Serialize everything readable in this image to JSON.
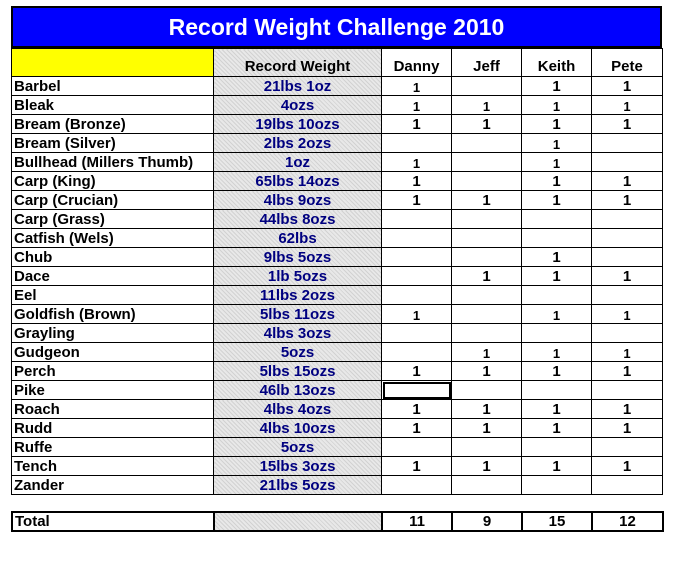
{
  "title": "Record Weight Challenge 2010",
  "headers": {
    "record": "Record Weight",
    "people": [
      "Danny",
      "Jeff",
      "Keith",
      "Pete"
    ]
  },
  "rows": [
    {
      "name": "Barbel",
      "record": "21lbs 1oz",
      "marks": [
        "1",
        "",
        "1",
        "1"
      ],
      "small": [
        true,
        false,
        false,
        false
      ]
    },
    {
      "name": "Bleak",
      "record": "4ozs",
      "marks": [
        "1",
        "1",
        "1",
        "1"
      ],
      "small": [
        true,
        true,
        true,
        true
      ]
    },
    {
      "name": "Bream (Bronze)",
      "record": "19lbs 10ozs",
      "marks": [
        "1",
        "1",
        "1",
        "1"
      ],
      "small": [
        false,
        false,
        false,
        false
      ]
    },
    {
      "name": "Bream (Silver)",
      "record": "2lbs 2ozs",
      "marks": [
        "",
        "",
        "1",
        ""
      ],
      "small": [
        false,
        false,
        true,
        false
      ]
    },
    {
      "name": "Bullhead (Millers Thumb)",
      "record": "1oz",
      "marks": [
        "1",
        "",
        "1",
        ""
      ],
      "small": [
        true,
        false,
        true,
        false
      ]
    },
    {
      "name": "Carp (King)",
      "record": "65lbs 14ozs",
      "marks": [
        "1",
        "",
        "1",
        "1"
      ],
      "small": [
        false,
        false,
        false,
        false
      ]
    },
    {
      "name": "Carp (Crucian)",
      "record": "4lbs 9ozs",
      "marks": [
        "1",
        "1",
        "1",
        "1"
      ],
      "small": [
        false,
        false,
        false,
        false
      ]
    },
    {
      "name": "Carp (Grass)",
      "record": "44lbs 8ozs",
      "marks": [
        "",
        "",
        "",
        ""
      ],
      "small": [
        false,
        false,
        false,
        false
      ]
    },
    {
      "name": "Catfish (Wels)",
      "record": "62lbs",
      "marks": [
        "",
        "",
        "",
        ""
      ],
      "small": [
        false,
        false,
        false,
        false
      ]
    },
    {
      "name": "Chub",
      "record": "9lbs 5ozs",
      "marks": [
        "",
        "",
        "1",
        ""
      ],
      "small": [
        false,
        false,
        false,
        false
      ]
    },
    {
      "name": "Dace",
      "record": "1lb 5ozs",
      "marks": [
        "",
        "1",
        "1",
        "1"
      ],
      "small": [
        false,
        false,
        false,
        false
      ]
    },
    {
      "name": "Eel",
      "record": "11lbs 2ozs",
      "marks": [
        "",
        "",
        "",
        ""
      ],
      "small": [
        false,
        false,
        false,
        false
      ]
    },
    {
      "name": "Goldfish (Brown)",
      "record": "5lbs 11ozs",
      "marks": [
        "1",
        "",
        "1",
        "1"
      ],
      "small": [
        true,
        false,
        true,
        true
      ]
    },
    {
      "name": "Grayling",
      "record": "4lbs 3ozs",
      "marks": [
        "",
        "",
        "",
        ""
      ],
      "small": [
        false,
        false,
        false,
        false
      ]
    },
    {
      "name": "Gudgeon",
      "record": "5ozs",
      "marks": [
        "",
        "1",
        "1",
        "1"
      ],
      "small": [
        false,
        true,
        true,
        true
      ]
    },
    {
      "name": "Perch",
      "record": "5lbs 15ozs",
      "marks": [
        "1",
        "1",
        "1",
        "1"
      ],
      "small": [
        false,
        false,
        false,
        false
      ]
    },
    {
      "name": "Pike",
      "record": "46lb 13ozs",
      "marks": [
        "",
        "",
        "",
        ""
      ],
      "small": [
        false,
        false,
        false,
        false
      ]
    },
    {
      "name": "Roach",
      "record": "4lbs 4ozs",
      "marks": [
        "1",
        "1",
        "1",
        "1"
      ],
      "small": [
        false,
        false,
        false,
        false
      ]
    },
    {
      "name": "Rudd",
      "record": "4lbs 10ozs",
      "marks": [
        "1",
        "1",
        "1",
        "1"
      ],
      "small": [
        false,
        false,
        false,
        false
      ]
    },
    {
      "name": "Ruffe",
      "record": "5ozs",
      "marks": [
        "",
        "",
        "",
        ""
      ],
      "small": [
        false,
        false,
        false,
        false
      ]
    },
    {
      "name": "Tench",
      "record": "15lbs 3ozs",
      "marks": [
        "1",
        "1",
        "1",
        "1"
      ],
      "small": [
        false,
        false,
        false,
        false
      ]
    },
    {
      "name": "Zander",
      "record": "21lbs 5ozs",
      "marks": [
        "",
        "",
        "",
        ""
      ],
      "small": [
        false,
        false,
        false,
        false
      ]
    }
  ],
  "total": {
    "label": "Total",
    "values": [
      "11",
      "9",
      "15",
      "12"
    ]
  },
  "selected_cell": {
    "row": "Pike",
    "column": "Danny"
  },
  "colors": {
    "title_bg": "#0000ff",
    "title_text": "#ffffff",
    "header_highlight": "#ffff00",
    "record_text": "#000080"
  }
}
